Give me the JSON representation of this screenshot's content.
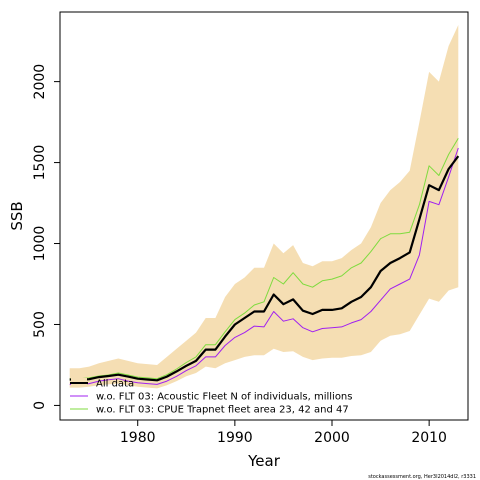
{
  "chart_data": {
    "type": "line",
    "title": "",
    "xlabel": "Year",
    "ylabel": "SSB",
    "xlim": [
      1972,
      2014
    ],
    "ylim": [
      -90,
      2430
    ],
    "xticks": [
      1980,
      1990,
      2000,
      2010
    ],
    "yticks": [
      0,
      500,
      1000,
      1500,
      2000
    ],
    "grid": false,
    "legend_position": "bottom-left",
    "colors": {
      "band": "#f5deb3",
      "all_data": "#000000",
      "acoustic": "#a020f0",
      "cpue": "#7fdb3f"
    },
    "x": [
      1973,
      1974,
      1975,
      1976,
      1977,
      1978,
      1979,
      1980,
      1981,
      1982,
      1983,
      1984,
      1985,
      1986,
      1987,
      1988,
      1989,
      1990,
      1991,
      1992,
      1993,
      1994,
      1995,
      1996,
      1997,
      1998,
      1999,
      2000,
      2001,
      2002,
      2003,
      2004,
      2005,
      2006,
      2007,
      2008,
      2009,
      2010,
      2011,
      2012,
      2013
    ],
    "band": {
      "name": "All data",
      "lower": [
        110,
        110,
        115,
        125,
        130,
        135,
        125,
        115,
        110,
        105,
        125,
        150,
        180,
        200,
        240,
        230,
        260,
        280,
        300,
        310,
        310,
        350,
        330,
        335,
        300,
        280,
        290,
        295,
        295,
        305,
        310,
        330,
        400,
        430,
        440,
        460,
        560,
        660,
        640,
        710,
        730
      ],
      "upper": [
        230,
        230,
        240,
        260,
        275,
        290,
        275,
        260,
        255,
        250,
        300,
        350,
        400,
        450,
        540,
        540,
        670,
        750,
        790,
        850,
        850,
        1000,
        940,
        990,
        880,
        860,
        890,
        890,
        910,
        960,
        1000,
        1100,
        1250,
        1330,
        1380,
        1450,
        1750,
        2060,
        2000,
        2220,
        2350
      ]
    },
    "series": [
      {
        "name": "All data",
        "values": [
          160,
          158,
          162,
          175,
          182,
          190,
          178,
          165,
          160,
          155,
          178,
          210,
          245,
          275,
          345,
          345,
          425,
          500,
          540,
          580,
          580,
          685,
          625,
          655,
          585,
          565,
          590,
          590,
          600,
          640,
          670,
          730,
          830,
          880,
          910,
          945,
          1150,
          1360,
          1330,
          1460,
          1540
        ]
      },
      {
        "name": "w.o. FLT 03: Acoustic Fleet   N of individuals, millions",
        "values": [
          130,
          130,
          135,
          150,
          158,
          165,
          150,
          140,
          135,
          130,
          150,
          180,
          215,
          245,
          300,
          300,
          370,
          420,
          450,
          490,
          485,
          580,
          520,
          535,
          480,
          455,
          475,
          480,
          485,
          510,
          530,
          580,
          650,
          720,
          750,
          780,
          930,
          1260,
          1240,
          1410,
          1590
        ]
      },
      {
        "name": "w.o. FLT 03: CPUE Trapnet fleet area 23, 42 and 47",
        "values": [
          165,
          165,
          170,
          182,
          188,
          200,
          188,
          175,
          170,
          165,
          190,
          225,
          265,
          300,
          375,
          375,
          455,
          530,
          570,
          620,
          640,
          790,
          750,
          820,
          750,
          730,
          770,
          780,
          800,
          850,
          880,
          950,
          1030,
          1060,
          1060,
          1070,
          1240,
          1480,
          1420,
          1550,
          1650
        ]
      }
    ],
    "legend": [
      "All data",
      "w.o. FLT 03: Acoustic Fleet   N of individuals, millions",
      "w.o. FLT 03: CPUE Trapnet fleet area 23, 42 and 47"
    ],
    "footer": "stockassessment.org,  Her3I2014dl2, r3331"
  }
}
